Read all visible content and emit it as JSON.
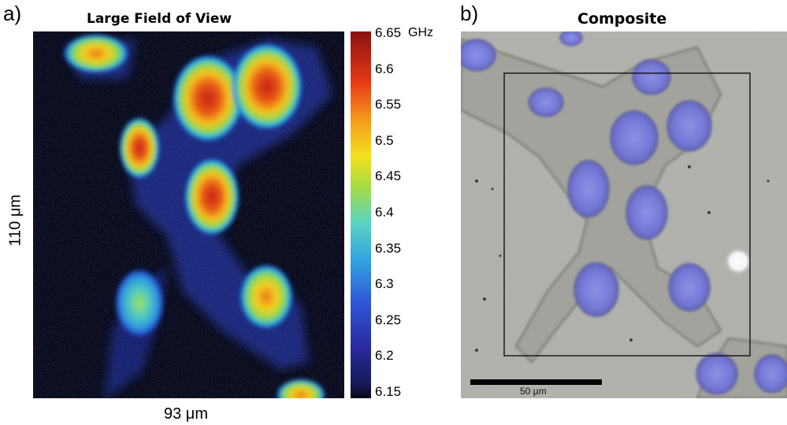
{
  "panel_a": {
    "letter": "a)",
    "title": "Large Field of View",
    "y_label": "110 μm",
    "x_label": "93 μm",
    "colorbar": {
      "unit": "GHz",
      "ticks": [
        "6.65",
        "6.6",
        "6.55",
        "6.5",
        "6.45",
        "6.4",
        "6.35",
        "6.3",
        "6.25",
        "6.2",
        "6.15"
      ],
      "min": 6.15,
      "max": 6.65,
      "colormap": "jet (dark navy to dark red)"
    }
  },
  "panel_b": {
    "letter": "b)",
    "title": "Composite",
    "scale_bar_label": "50 μm"
  },
  "colors": {
    "heatmap_background": "#04040f",
    "photo_background": "#b2b2ad",
    "nucleus_tint": "#7b7fe0",
    "scale_bar": "#000000"
  }
}
